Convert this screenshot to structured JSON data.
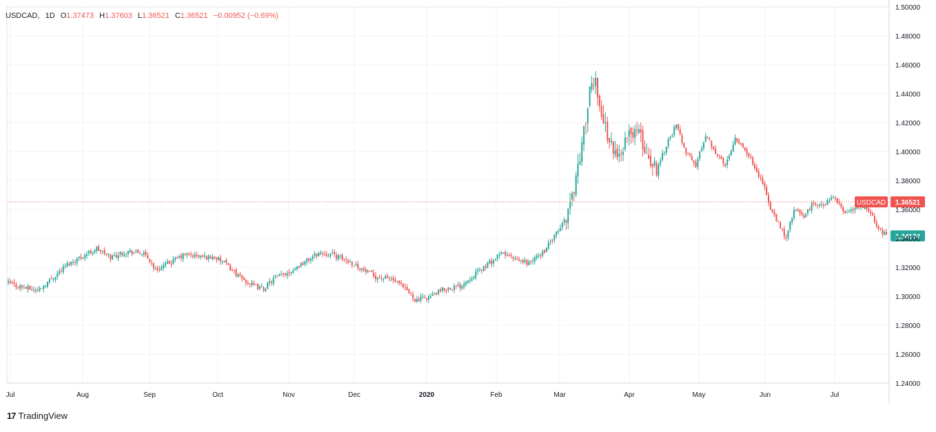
{
  "legend": {
    "symbol": "USDCAD",
    "interval": "1D",
    "open_label": "O",
    "open": "1.37473",
    "high_label": "H",
    "high": "1.37603",
    "low_label": "L",
    "low": "1.36521",
    "close_label": "C",
    "close": "1.36521",
    "change": "−0.00952 (−0.69%)"
  },
  "branding": {
    "logo_text": "TradingView"
  },
  "colors": {
    "up": "#26a69a",
    "down": "#ef5350",
    "grid": "#f0f3fa",
    "axis_text": "#131722"
  },
  "chart_data": {
    "type": "candlestick",
    "symbol": "USDCAD",
    "interval": "1D",
    "title": "",
    "xlabel": "",
    "ylabel": "",
    "x_tick_labels": [
      "Jul",
      "Aug",
      "Sep",
      "Oct",
      "Nov",
      "Dec",
      "2020",
      "Feb",
      "Mar",
      "Apr",
      "May",
      "Jun",
      "Jul"
    ],
    "y_ticks": [
      "1.24000",
      "1.26000",
      "1.28000",
      "1.30000",
      "1.32000",
      "1.34000",
      "1.36000",
      "1.38000",
      "1.40000",
      "1.42000",
      "1.44000",
      "1.46000",
      "1.48000",
      "1.50000"
    ],
    "ylim": [
      1.24,
      1.5
    ],
    "grid": true,
    "current_price": {
      "label": "USDCAD",
      "value": "1.36521",
      "color": "#ef5350"
    },
    "second_price": {
      "value": "1.34174",
      "color": "#26a69a"
    },
    "price_path_closes": [
      [
        0,
        1.309
      ],
      [
        8,
        1.306
      ],
      [
        15,
        1.304
      ],
      [
        22,
        1.312
      ],
      [
        30,
        1.322
      ],
      [
        38,
        1.328
      ],
      [
        45,
        1.333
      ],
      [
        52,
        1.327
      ],
      [
        60,
        1.331
      ],
      [
        68,
        1.33
      ],
      [
        72,
        1.325
      ],
      [
        75,
        1.318
      ],
      [
        82,
        1.323
      ],
      [
        90,
        1.329
      ],
      [
        100,
        1.327
      ],
      [
        105,
        1.327
      ],
      [
        110,
        1.323
      ],
      [
        118,
        1.313
      ],
      [
        125,
        1.307
      ],
      [
        130,
        1.305
      ],
      [
        135,
        1.312
      ],
      [
        143,
        1.317
      ],
      [
        150,
        1.323
      ],
      [
        158,
        1.33
      ],
      [
        165,
        1.329
      ],
      [
        170,
        1.326
      ],
      [
        175,
        1.323
      ],
      [
        182,
        1.317
      ],
      [
        188,
        1.313
      ],
      [
        195,
        1.312
      ],
      [
        202,
        1.305
      ],
      [
        208,
        1.297
      ],
      [
        215,
        1.3
      ],
      [
        222,
        1.305
      ],
      [
        230,
        1.307
      ],
      [
        238,
        1.316
      ],
      [
        245,
        1.323
      ],
      [
        252,
        1.33
      ],
      [
        258,
        1.325
      ],
      [
        265,
        1.323
      ],
      [
        272,
        1.33
      ],
      [
        280,
        1.345
      ],
      [
        284,
        1.355
      ],
      [
        288,
        1.375
      ],
      [
        292,
        1.405
      ],
      [
        296,
        1.44
      ],
      [
        299,
        1.45
      ],
      [
        302,
        1.425
      ],
      [
        306,
        1.408
      ],
      [
        310,
        1.395
      ],
      [
        315,
        1.41
      ],
      [
        320,
        1.416
      ],
      [
        325,
        1.398
      ],
      [
        330,
        1.388
      ],
      [
        335,
        1.405
      ],
      [
        340,
        1.418
      ],
      [
        345,
        1.4
      ],
      [
        350,
        1.39
      ],
      [
        355,
        1.412
      ],
      [
        360,
        1.4
      ],
      [
        365,
        1.39
      ],
      [
        370,
        1.41
      ],
      [
        375,
        1.402
      ],
      [
        380,
        1.39
      ],
      [
        385,
        1.375
      ],
      [
        388,
        1.36
      ],
      [
        392,
        1.35
      ],
      [
        396,
        1.34
      ],
      [
        400,
        1.36
      ],
      [
        405,
        1.355
      ],
      [
        410,
        1.365
      ],
      [
        415,
        1.362
      ],
      [
        420,
        1.37
      ],
      [
        425,
        1.358
      ],
      [
        430,
        1.36
      ],
      [
        435,
        1.362
      ],
      [
        440,
        1.355
      ],
      [
        444,
        1.345
      ],
      [
        447,
        1.342
      ]
    ],
    "num_candles": 448
  }
}
